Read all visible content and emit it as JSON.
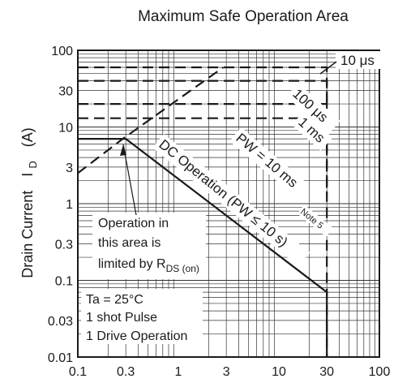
{
  "chart_data": {
    "type": "line",
    "title": "Maximum Safe Operation Area",
    "xlabel": "",
    "ylabel": {
      "text": "Drain Current",
      "symbol": "I",
      "sub": "D",
      "unit": "(A)"
    },
    "x_scale": "log",
    "y_scale": "log",
    "xlim": [
      0.1,
      100
    ],
    "ylim": [
      0.01,
      100
    ],
    "x_ticks": [
      "0.1",
      "0.3",
      "1",
      "3",
      "10",
      "30",
      "100"
    ],
    "y_ticks": [
      "100",
      "30",
      "10",
      "3",
      "1",
      "0.3",
      "0.1",
      "0.03",
      "0.01"
    ],
    "grid": true,
    "series": [
      {
        "name": "DC Operation (PW ≤ 10 s)",
        "style": "solid",
        "x": [
          0.1,
          0.3,
          30,
          30
        ],
        "y": [
          7,
          7,
          0.07,
          0.01
        ]
      },
      {
        "name": "PW = 10 ms",
        "style": "dashed",
        "x": [
          0.1,
          30,
          30
        ],
        "y": [
          13,
          13,
          1.3
        ]
      },
      {
        "name": "1 ms",
        "style": "dashed",
        "x": [
          0.1,
          30,
          30
        ],
        "y": [
          20,
          20,
          5
        ]
      },
      {
        "name": "100 μs",
        "style": "dashed",
        "x": [
          0.1,
          30,
          30
        ],
        "y": [
          40,
          40,
          18
        ]
      },
      {
        "name": "10 μs",
        "style": "dashed",
        "x": [
          0.1,
          30,
          30
        ],
        "y": [
          60,
          60,
          0.01
        ]
      },
      {
        "name": "",
        "style": "dashed",
        "x": [
          0.1,
          0.28,
          2.8
        ],
        "y": [
          2.5,
          7,
          60
        ]
      }
    ],
    "labels": {
      "dc": "DC Operation (PW",
      "dc_sym": "≤",
      "dc_end": "10 s)",
      "pw10ms": "PW = 10 ms",
      "ms1": "1 ms",
      "us100": "100 μs",
      "us10": "10 μs",
      "note": "Note 5"
    },
    "annotations": {
      "op_line1": "Operation in",
      "op_line2": "this area is",
      "op_line3": "limited by R",
      "op_sub": "DS (on)",
      "cond1": "Ta = 25°C",
      "cond2": "1 shot Pulse",
      "cond3": "1 Drive Operation"
    }
  }
}
